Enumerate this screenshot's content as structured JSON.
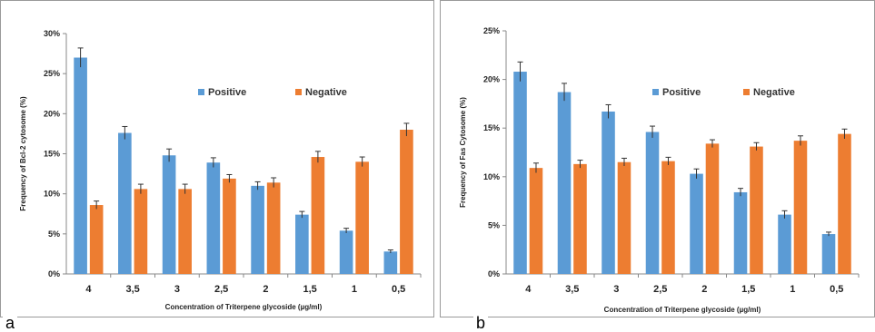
{
  "colors": {
    "positive": "#5b9bd5",
    "negative": "#ed7d31",
    "axis": "#888888",
    "errorbar": "#333333"
  },
  "chart_data": [
    {
      "panel_label": "a",
      "type": "bar",
      "categories": [
        "4",
        "3,5",
        "3",
        "2,5",
        "2",
        "1,5",
        "1",
        "0,5"
      ],
      "series": [
        {
          "name": "Positive",
          "values": [
            27,
            17.6,
            14.8,
            13.9,
            11.0,
            7.4,
            5.4,
            2.8
          ],
          "errors": [
            1.2,
            0.8,
            0.8,
            0.6,
            0.5,
            0.4,
            0.3,
            0.2
          ]
        },
        {
          "name": "Negative",
          "values": [
            8.6,
            10.6,
            10.6,
            11.9,
            11.4,
            14.6,
            14.0,
            18.0
          ],
          "errors": [
            0.5,
            0.6,
            0.6,
            0.5,
            0.6,
            0.7,
            0.6,
            0.8
          ]
        }
      ],
      "xlabel": "Concentration of Triterpene glycoside (µg/ml)",
      "ylabel": "Frequency of Bcl-2 cytosome (%)",
      "ylim": [
        0,
        30
      ],
      "yticks": [
        "0%",
        "5%",
        "10%",
        "15%",
        "20%",
        "25%",
        "30%"
      ],
      "legend_position": "top-right",
      "grid": false
    },
    {
      "panel_label": "b",
      "type": "bar",
      "categories": [
        "4",
        "3,5",
        "3",
        "2,5",
        "2",
        "1,5",
        "1",
        "0,5"
      ],
      "series": [
        {
          "name": "Positive",
          "values": [
            20.8,
            18.7,
            16.7,
            14.6,
            10.3,
            8.4,
            6.1,
            4.1
          ],
          "errors": [
            1.0,
            0.9,
            0.7,
            0.6,
            0.5,
            0.4,
            0.4,
            0.2
          ]
        },
        {
          "name": "Negative",
          "values": [
            10.9,
            11.3,
            11.5,
            11.6,
            13.4,
            13.1,
            13.7,
            14.4
          ],
          "errors": [
            0.5,
            0.4,
            0.4,
            0.4,
            0.4,
            0.4,
            0.5,
            0.5
          ]
        }
      ],
      "xlabel": "Concentration of Triterpene glycoside (µg/ml)",
      "ylabel": "Frequency of Fas Cytosome (%)",
      "ylim": [
        0,
        25
      ],
      "yticks": [
        "0%",
        "5%",
        "10%",
        "15%",
        "20%",
        "25%"
      ],
      "legend_position": "top-right",
      "grid": false
    }
  ]
}
